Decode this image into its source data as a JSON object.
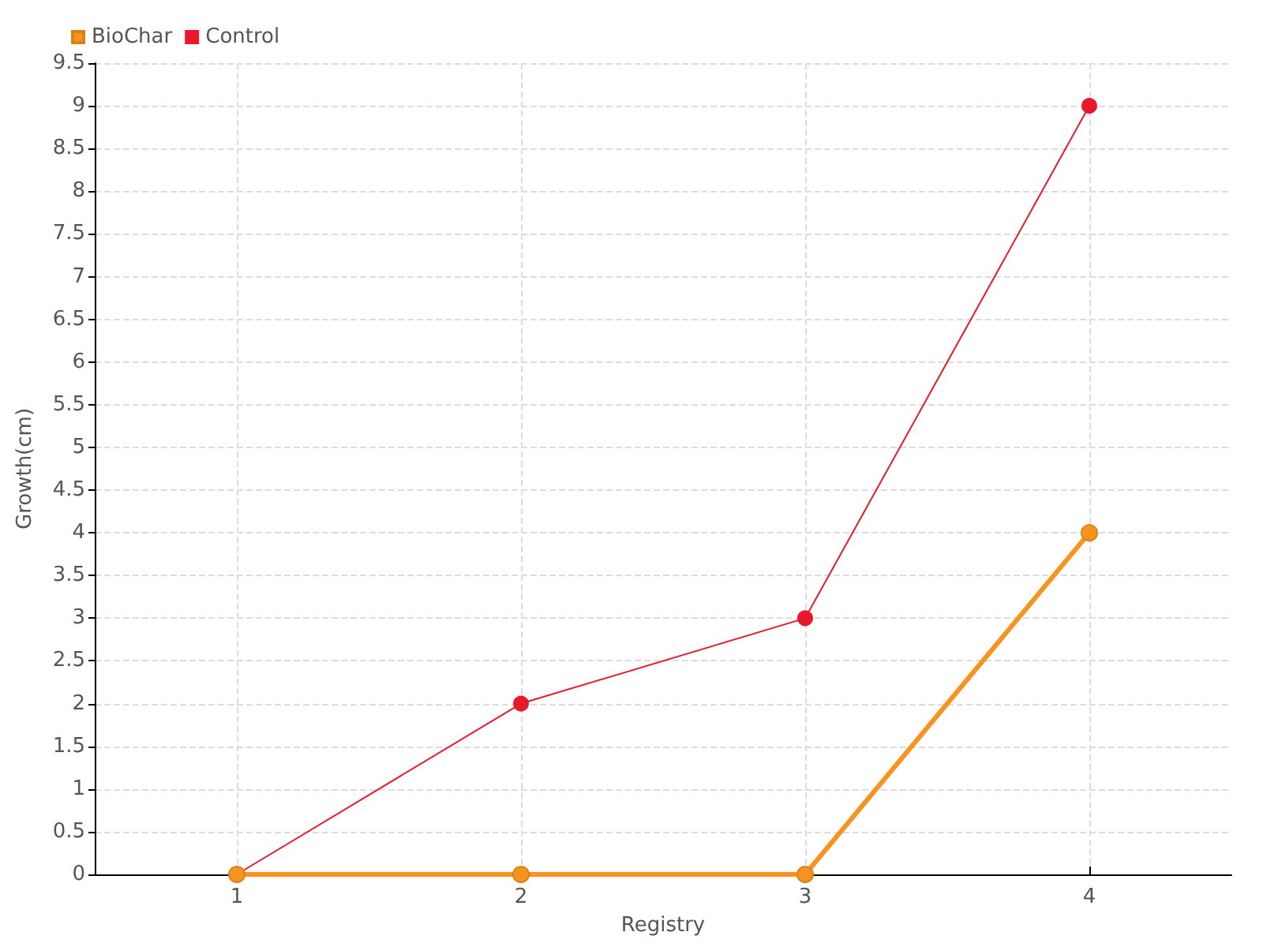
{
  "chart_data": {
    "type": "line",
    "xlabel": "Registry",
    "ylabel": "Growth(cm)",
    "categories": [
      "1",
      "2",
      "3",
      "4"
    ],
    "series": [
      {
        "name": "BioChar",
        "color": "#f7931e",
        "values": [
          0,
          0,
          0,
          4
        ]
      },
      {
        "name": "Control",
        "color": "#e8192c",
        "values": [
          0,
          2,
          3,
          9
        ]
      }
    ],
    "ylim": [
      0,
      9.5
    ],
    "yticks": [
      0,
      0.5,
      1,
      1.5,
      2,
      2.5,
      3,
      3.5,
      4,
      4.5,
      5,
      5.5,
      6,
      6.5,
      7,
      7.5,
      8,
      8.5,
      9,
      9.5
    ],
    "grid": true,
    "legend": "top left",
    "marker": "circle",
    "line_style": "solid"
  }
}
